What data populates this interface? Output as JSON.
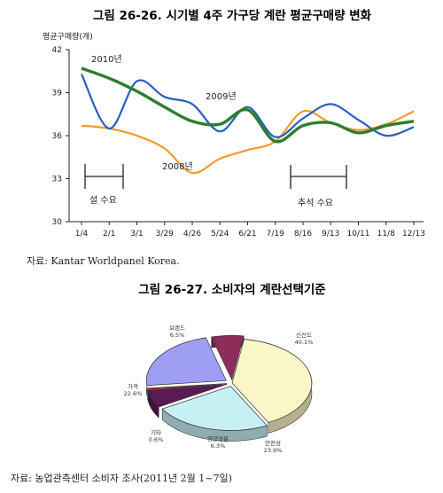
{
  "figure1": {
    "title": "그림 26-26.  시기별 4주 가구당 계란 평균구매량 변화",
    "ylabel": "평균구매량(개)",
    "source": "자료: Kantar Worldpanel Korea.",
    "annotations": [
      "설 수요",
      "추석 수요"
    ]
  },
  "figure2": {
    "title": "그림 26-27.  소비자의 계란선택기준",
    "source": "자료: 농업관측센터 소비자 조사(2011년 2월 1~7일)"
  },
  "colors": {
    "s2010": "#2e7d2e",
    "s2009": "#2a5fbf",
    "s2008": "#f39a2b"
  },
  "chart_data": [
    {
      "type": "line",
      "title": "그림 26-26.  시기별 4주 가구당 계란 평균구매량 변화",
      "ylabel": "평균구매량(개)",
      "xlabel": "",
      "ylim": [
        30,
        42
      ],
      "yticks": [
        30,
        33,
        36,
        39,
        42
      ],
      "categories": [
        "1/4",
        "2/1",
        "3/1",
        "3/29",
        "4/26",
        "5/24",
        "6/21",
        "7/19",
        "8/16",
        "9/13",
        "10/11",
        "11/8",
        "12/13"
      ],
      "grid": false,
      "series": [
        {
          "name": "2010년",
          "color": "#2e7d2e",
          "values": [
            40.7,
            40.0,
            39.1,
            38.0,
            37.0,
            36.8,
            37.8,
            35.6,
            36.7,
            36.9,
            36.2,
            36.7,
            37.0
          ]
        },
        {
          "name": "2009년",
          "color": "#2a5fbf",
          "values": [
            40.3,
            36.5,
            39.8,
            38.7,
            38.2,
            36.3,
            38.0,
            35.9,
            37.2,
            38.2,
            37.1,
            36.0,
            36.6
          ]
        },
        {
          "name": "2008년",
          "color": "#f39a2b",
          "values": [
            36.7,
            36.5,
            36.0,
            35.1,
            33.4,
            34.4,
            35.0,
            35.6,
            37.7,
            36.9,
            36.4,
            36.8,
            37.7
          ]
        }
      ]
    },
    {
      "type": "pie",
      "title": "그림 26-27.  소비자의 계란선택기준",
      "slices": [
        {
          "label": "신선도",
          "value": 40.1,
          "value_label": "40.1%",
          "color": "#fbf6c8"
        },
        {
          "label": "안전성",
          "value": 23.9,
          "value_label": "23.9%",
          "color": "#c6f0f4"
        },
        {
          "label": "영양성분",
          "value": 6.3,
          "value_label": "6.3%",
          "color": "#5a1a52"
        },
        {
          "label": "기타",
          "value": 0.6,
          "value_label": "0.6%",
          "color": "#c42a1a"
        },
        {
          "label": "가격",
          "value": 22.6,
          "value_label": "22.6%",
          "color": "#9e9ef2"
        },
        {
          "label": "브랜드",
          "value": 6.5,
          "value_label": "6.5%",
          "color": "#8c2d5a"
        }
      ]
    }
  ]
}
